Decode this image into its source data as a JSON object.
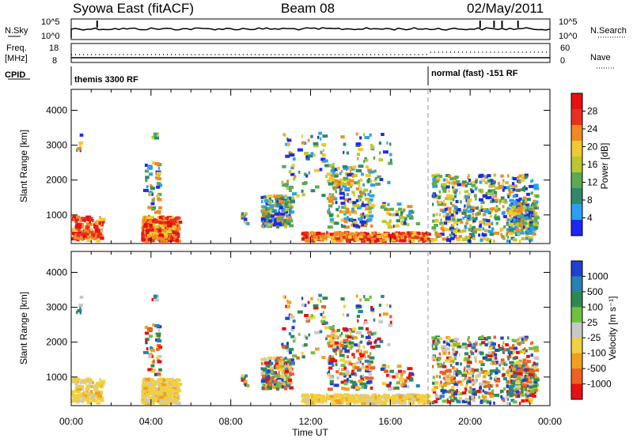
{
  "header": {
    "title": "Syowa East (fitACF)",
    "beam": "Beam 08",
    "date": "02/May/2011"
  },
  "summary_panel": {
    "nsky_label": "N.Sky",
    "nsky_ticks": [
      "10^5",
      "10^0"
    ],
    "nsearch_label": "N.Search",
    "nsearch_ticks": [
      "10^5",
      "10^0"
    ],
    "freq_label_line1": "Freq.",
    "freq_label_line2": "[MHz]",
    "freq_ticks": [
      "18",
      "8"
    ],
    "nave_label": "Nave",
    "nave_ticks": [
      "60",
      "0"
    ],
    "cpid_label": "CPID",
    "cpid_segments": [
      {
        "text": "themis 3300 RF",
        "start_hour": 0
      },
      {
        "text": "normal (fast) -151 RF",
        "start_hour": 18
      }
    ]
  },
  "chart_data": [
    {
      "type": "heatmap",
      "title": "",
      "xlabel": "Time UT",
      "ylabel": "Slant Range [km]",
      "x_range_hours": [
        0,
        24
      ],
      "y_range_km": [
        180,
        4600
      ],
      "y_ticks": [
        "1000",
        "2000",
        "3000",
        "4000"
      ],
      "colorbar_label": "Power [dB]",
      "colorbar_ticks": [
        "4",
        "8",
        "12",
        "16",
        "20",
        "24",
        "28"
      ],
      "colors": [
        "#1e28f0",
        "#2aa0f0",
        "#2e8a6a",
        "#5aaa52",
        "#b8c830",
        "#f0c830",
        "#f08a20",
        "#e83020",
        "#e81010"
      ]
    },
    {
      "type": "heatmap",
      "title": "",
      "xlabel": "Time UT",
      "ylabel": "Slant Range [km]",
      "x_range_hours": [
        0,
        24
      ],
      "y_range_km": [
        180,
        4600
      ],
      "y_ticks": [
        "1000",
        "2000",
        "3000",
        "4000"
      ],
      "colorbar_label": "Velocity [m s⁻¹]",
      "colorbar_ticks": [
        "1000",
        "500",
        "100",
        "25",
        "-25",
        "-100",
        "-500",
        "-1000"
      ],
      "colors": [
        "#2040d0",
        "#2a80b0",
        "#2e8a50",
        "#70c040",
        "#c8c8c8",
        "#f0d040",
        "#f0a020",
        "#f06020",
        "#e81010"
      ]
    }
  ],
  "x_ticks": [
    "00:00",
    "04:00",
    "08:00",
    "12:00",
    "16:00",
    "20:00",
    "00:00"
  ],
  "xlabel": "Time UT"
}
